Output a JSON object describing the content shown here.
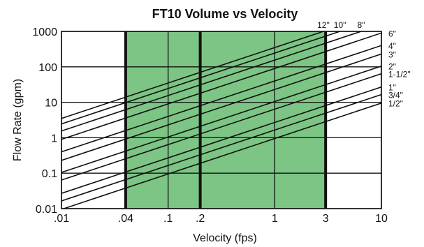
{
  "chart_data": {
    "type": "line",
    "title": "FT10 Volume vs Velocity",
    "xlabel": "Velocity (fps)",
    "ylabel": "Flow Rate (gpm)",
    "x_scale": "log",
    "y_scale": "log",
    "xlim": [
      0.01,
      10
    ],
    "ylim": [
      0.01,
      1000
    ],
    "x_ticks": [
      {
        "value": 0.01,
        "label": ".01"
      },
      {
        "value": 0.04,
        "label": ".04"
      },
      {
        "value": 0.1,
        "label": ".1"
      },
      {
        "value": 0.2,
        "label": ".2"
      },
      {
        "value": 1,
        "label": "1"
      },
      {
        "value": 3,
        "label": "3"
      },
      {
        "value": 10,
        "label": "10"
      }
    ],
    "y_ticks": [
      {
        "value": 0.01,
        "label": "0.01"
      },
      {
        "value": 0.1,
        "label": "0.1"
      },
      {
        "value": 1,
        "label": "1"
      },
      {
        "value": 10,
        "label": "10"
      },
      {
        "value": 100,
        "label": "100"
      },
      {
        "value": 1000,
        "label": "1000"
      }
    ],
    "grid": true,
    "highlight_region": {
      "x": [
        0.04,
        3
      ],
      "color": "#7cc584"
    },
    "series": [
      {
        "name": "1/2\"",
        "x": [
          0.01,
          10
        ],
        "y": [
          0.0095,
          9.5
        ]
      },
      {
        "name": "3/4\"",
        "x": [
          0.01,
          10
        ],
        "y": [
          0.0165,
          16.5
        ]
      },
      {
        "name": "1\"",
        "x": [
          0.01,
          10
        ],
        "y": [
          0.027,
          27
        ]
      },
      {
        "name": "1-1/2\"",
        "x": [
          0.01,
          10
        ],
        "y": [
          0.064,
          64
        ]
      },
      {
        "name": "2\"",
        "x": [
          0.01,
          10
        ],
        "y": [
          0.105,
          105
        ]
      },
      {
        "name": "3\"",
        "x": [
          0.01,
          10
        ],
        "y": [
          0.23,
          230
        ]
      },
      {
        "name": "4\"",
        "x": [
          0.01,
          10
        ],
        "y": [
          0.4,
          400
        ]
      },
      {
        "name": "6\"",
        "x": [
          0.01,
          10
        ],
        "y": [
          0.9,
          900
        ]
      },
      {
        "name": "8\"",
        "x": [
          0.01,
          10
        ],
        "y": [
          1.55,
          1550
        ]
      },
      {
        "name": "10\"",
        "x": [
          0.01,
          10
        ],
        "y": [
          2.45,
          2450
        ]
      },
      {
        "name": "12\"",
        "x": [
          0.01,
          10
        ],
        "y": [
          3.5,
          3500
        ]
      }
    ]
  }
}
